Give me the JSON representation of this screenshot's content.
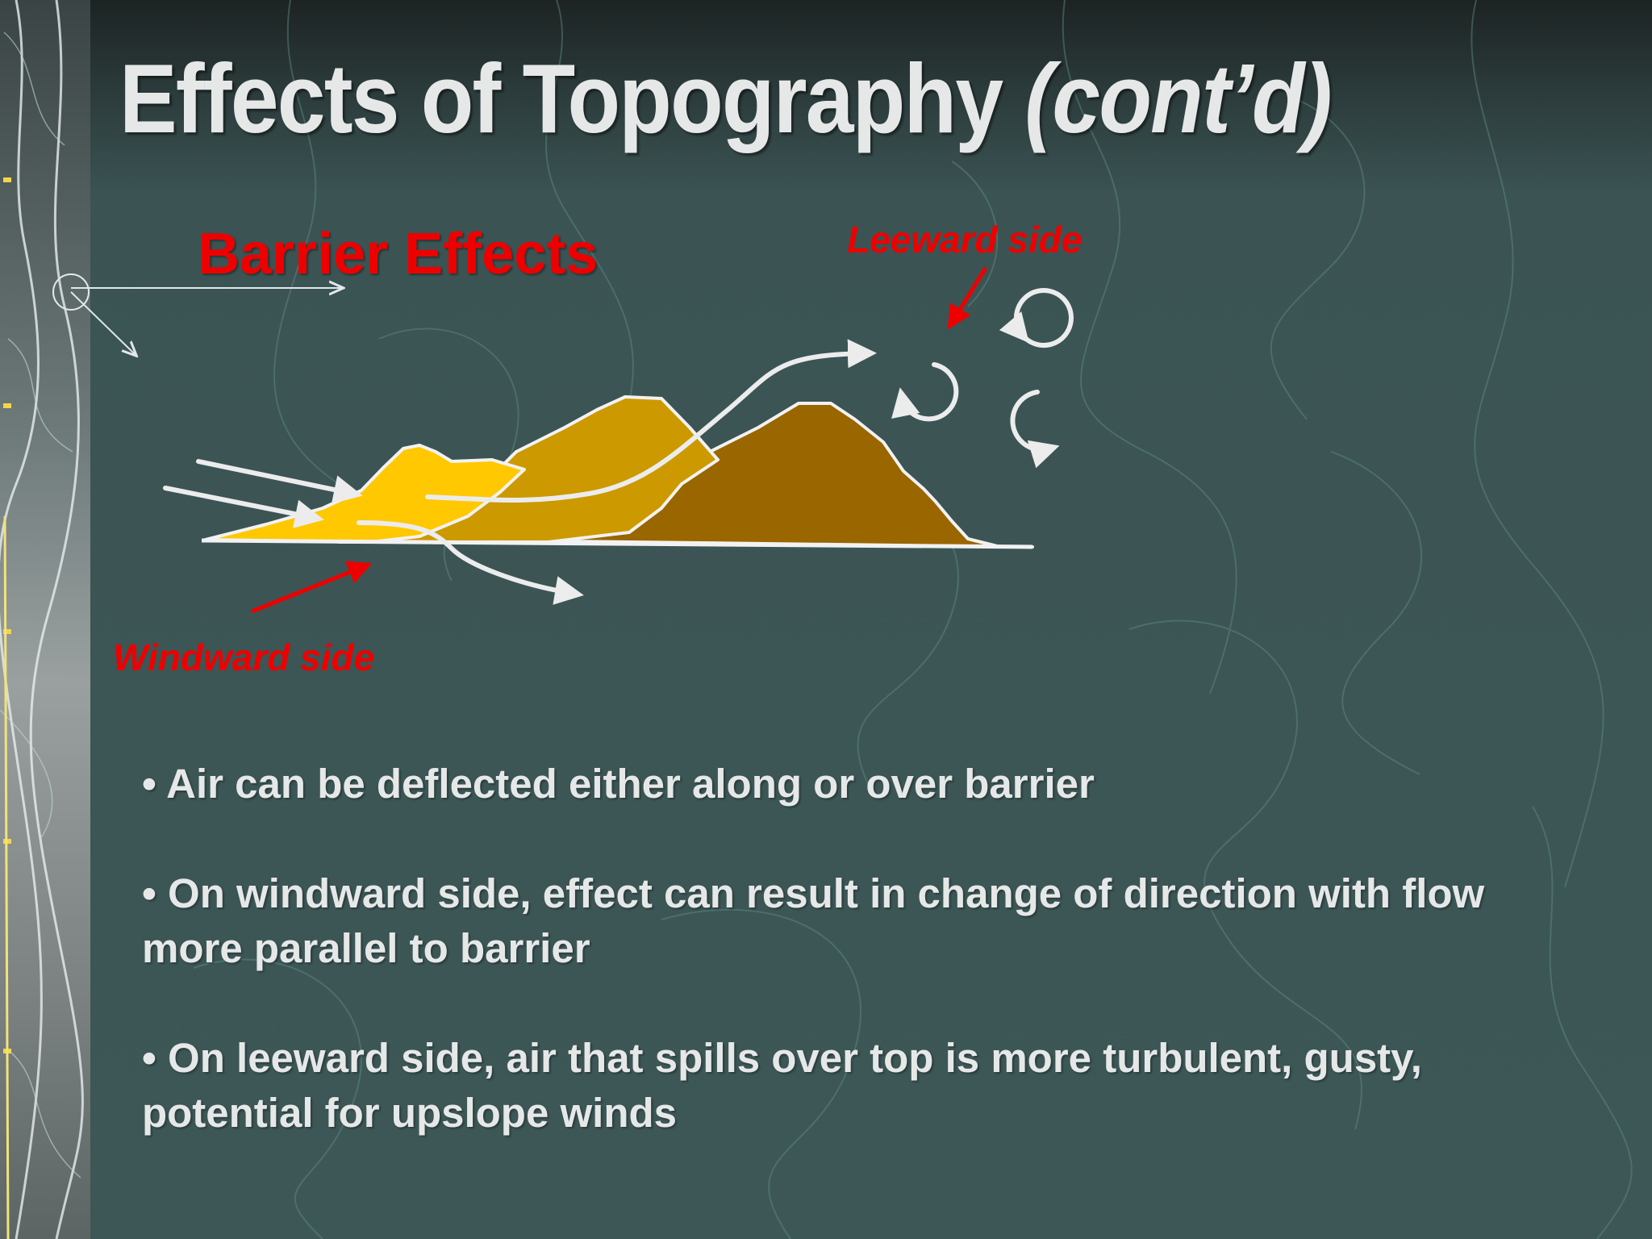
{
  "slide": {
    "title_main": "Effects of Topography ",
    "title_sub": "(cont’d)",
    "barrier_heading": "Barrier Effects",
    "leeward_label": "Leeward side",
    "windward_label": "Windward side",
    "bullets": [
      "Air can be deflected either along or over barrier",
      "On windward side, effect can result in change of direction with flow more parallel to barrier",
      "On leeward side, air that spills over top is more turbulent, gusty, potential for upslope winds"
    ]
  },
  "colors": {
    "background": "#3d5656",
    "title_text": "#e6e8e8",
    "accent_red": "#ee0000",
    "mountain_light": "#ffc800",
    "mountain_mid": "#cc9900",
    "mountain_dark": "#996600"
  },
  "icons": [
    "arrow-icon",
    "eddy-icon",
    "compass-icon"
  ]
}
